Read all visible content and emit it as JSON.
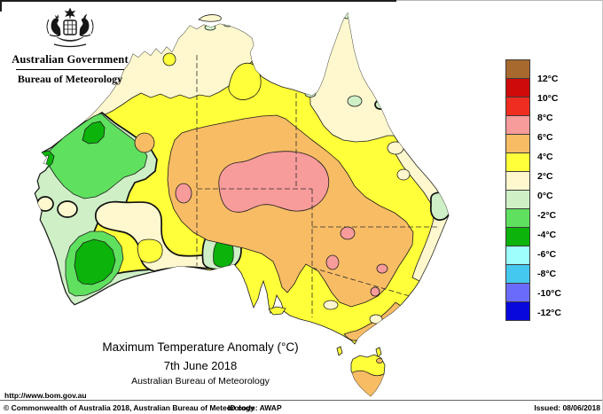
{
  "header": {
    "government_label": "Australian Government",
    "bureau_label": "Bureau of Meteorology",
    "coat_of_arms": "australian-coat-of-arms"
  },
  "title_block": {
    "title": "Maximum Temperature Anomaly (°C)",
    "date": "7th June 2018",
    "attribution": "Australian Bureau of Meteorology"
  },
  "footer": {
    "url": "http://www.bom.gov.au",
    "copyright": "© Commonwealth of Australia 2018, Australian Bureau of Meteorology",
    "id_code": "ID code: AWAP",
    "issued": "Issued: 08/06/2018"
  },
  "legend": {
    "boundary_labels": [
      "12°C",
      "10°C",
      "8°C",
      "6°C",
      "4°C",
      "2°C",
      "0°C",
      "-2°C",
      "-4°C",
      "-6°C",
      "-8°C",
      "-10°C",
      "-12°C"
    ],
    "colors_top_to_bottom": [
      "#A8692E",
      "#CE0A0A",
      "#EF2D20",
      "#F89B9B",
      "#F8BC64",
      "#FFFF3A",
      "#FFF8CE",
      "#CFF0C6",
      "#5FE05F",
      "#0BB30B",
      "#9EFEFE",
      "#45C8F0",
      "#6B6BFB",
      "#0808DD"
    ]
  },
  "map_summary": {
    "type": "filled-contour-map",
    "region": "Australia (with Tasmania)",
    "variable": "Maximum Temperature Anomaly",
    "units": "°C",
    "classes_present": [
      {
        "range": "+6 to +8",
        "color": "#F89B9B",
        "areas": "large central interior blob near NT/SA/WA corner; small spots in western NSW and southern inland SA/NSW"
      },
      {
        "range": "+4 to +6",
        "color": "#F8BC64",
        "areas": "broad central belt from eastern WA across southern NT / northern SA / SW QLD into inland NSW; Gippsland coast; southern Tasmania"
      },
      {
        "range": "+2 to +4",
        "color": "#FFFF3A",
        "areas": "most of the remaining mainland; northern Tasmania"
      },
      {
        "range": "0 to +2",
        "color": "#FFF8CE",
        "areas": "Top End and Kimberley north coast, Cape York and north QLD, east coastal strip, Nullarbor coastal band, pockets of inland southern WA"
      },
      {
        "range": "-2 to 0",
        "color": "#CFF0C6",
        "areas": "much of western WA and the south-west"
      },
      {
        "range": "-4 to -2",
        "color": "#5FE05F",
        "areas": "Pilbara / Gascoyne and lower south-west WA; small coastal patches on north and east coasts"
      },
      {
        "range": "-6 to -4",
        "color": "#0BB30B",
        "areas": "cores in the Pilbara, near Exmouth, south-west WA, and near Eucla on the Bight coast"
      }
    ]
  }
}
